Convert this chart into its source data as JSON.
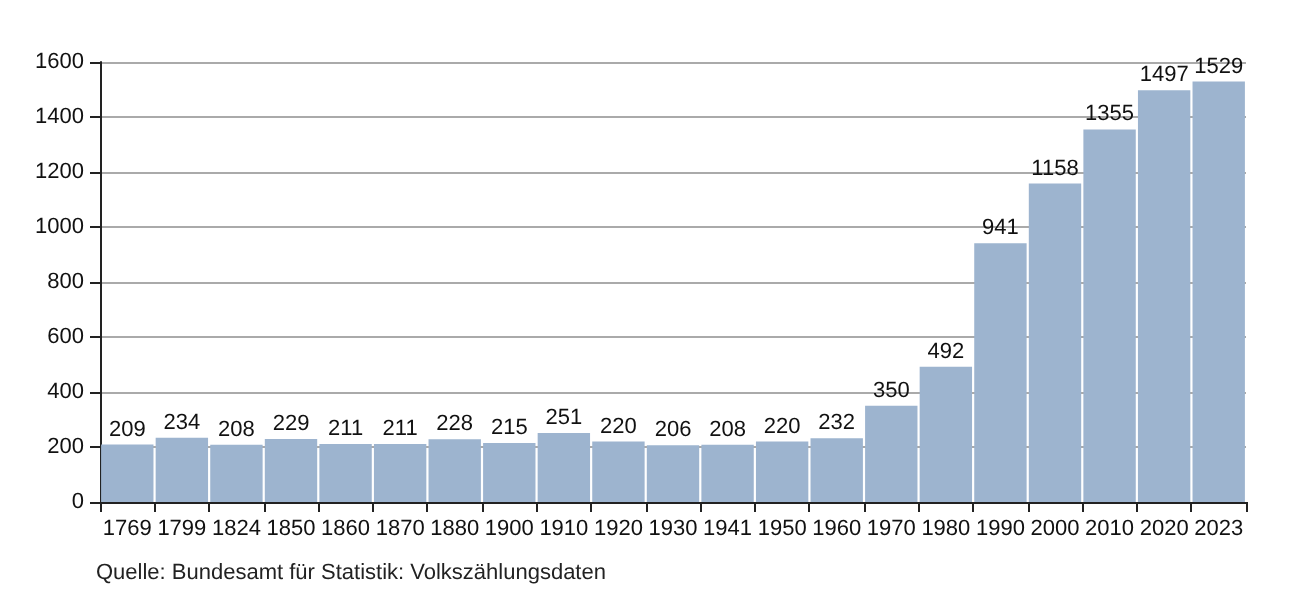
{
  "chart_data": {
    "type": "bar",
    "categories": [
      "1769",
      "1799",
      "1824",
      "1850",
      "1860",
      "1870",
      "1880",
      "1900",
      "1910",
      "1920",
      "1930",
      "1941",
      "1950",
      "1960",
      "1970",
      "1980",
      "1990",
      "2000",
      "2010",
      "2020",
      "2023"
    ],
    "values": [
      209,
      234,
      208,
      229,
      211,
      211,
      228,
      215,
      251,
      220,
      206,
      208,
      220,
      232,
      350,
      492,
      941,
      1158,
      1355,
      1497,
      1529
    ],
    "color": "#9db4cf",
    "ylim": [
      0,
      1600
    ],
    "yticks": [
      0,
      200,
      400,
      600,
      800,
      1000,
      1200,
      1400,
      1600
    ],
    "grid": "y",
    "data_labels": true,
    "annotations": [
      "Quelle: Bundesamt für Statistik: Volkszählungsdaten"
    ]
  }
}
